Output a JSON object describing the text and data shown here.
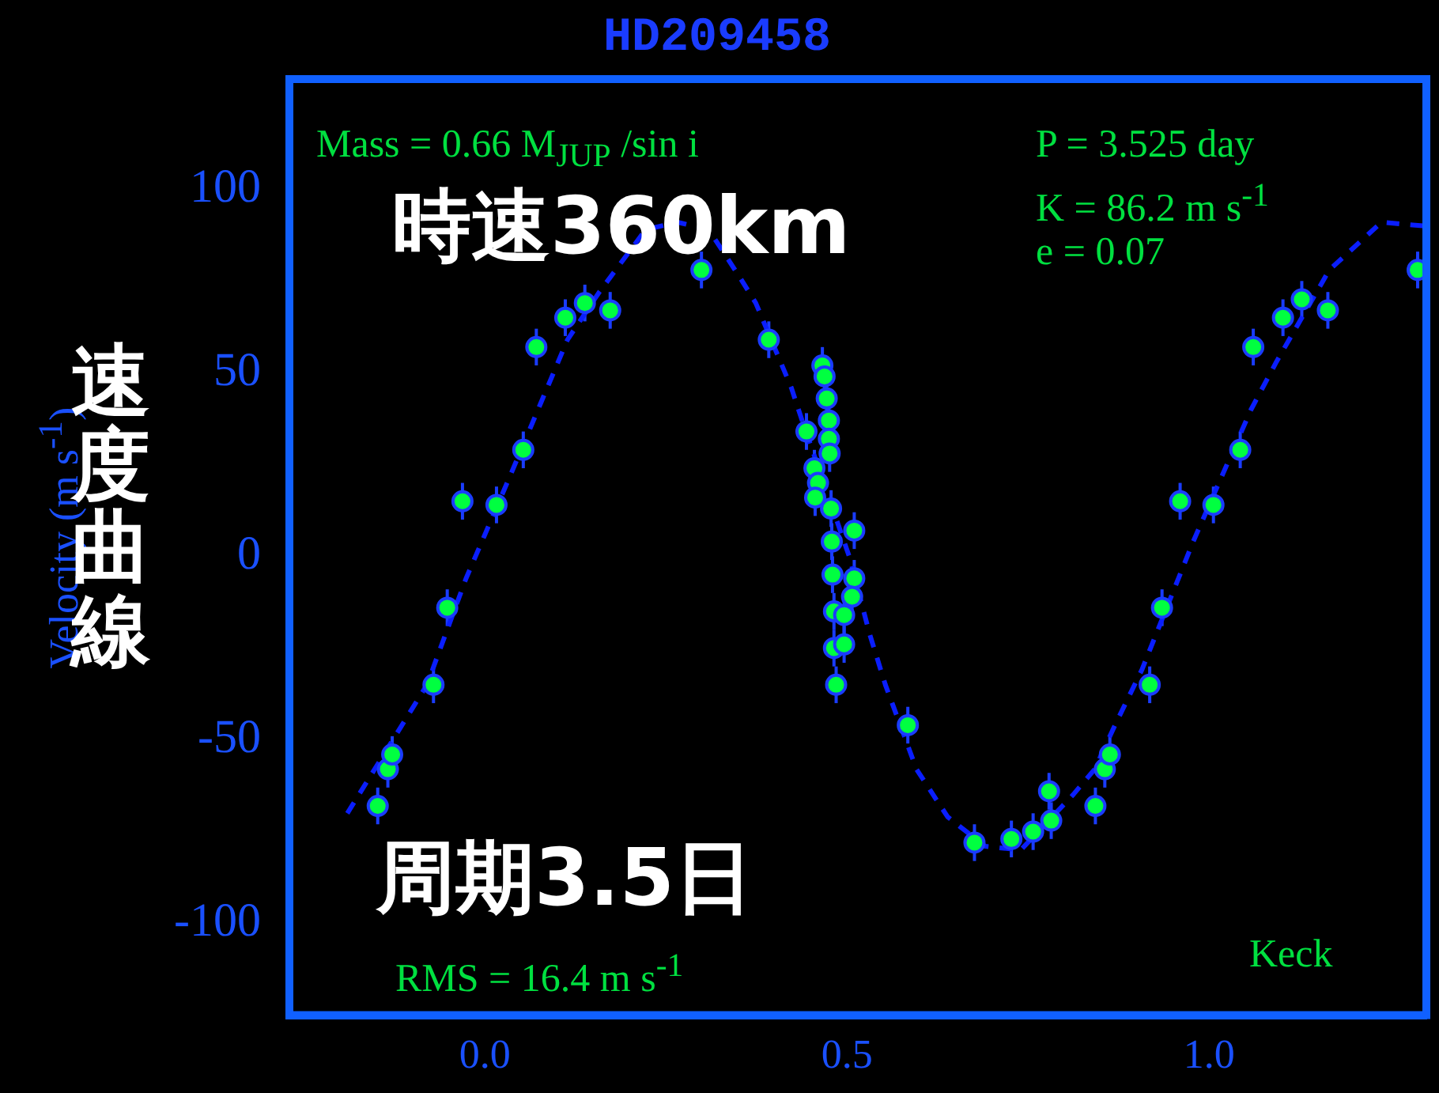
{
  "chart_data": {
    "type": "scatter",
    "title": "HD209458",
    "ylabel": "Velocity (m s$^{-1}$)",
    "xlim": [
      -0.27,
      1.3
    ],
    "xticks": [
      {
        "value": 0,
        "label": "0.0"
      },
      {
        "value": 0.5,
        "label": "0.5"
      },
      {
        "value": 1,
        "label": "1.0"
      }
    ],
    "ylim": [
      -125,
      130
    ],
    "yticks": [
      -100,
      -50,
      0,
      50,
      100
    ],
    "grid": false,
    "legend": false,
    "annotations": [
      "Mass = 0.66 M$_{JUP}$ /sin i",
      "P = 3.525 day",
      "K = 86.2 m s$^{-1}$",
      "e = 0.07",
      "RMS = 16.4 m s$^{-1}$",
      "Keck",
      "時速360km",
      "周期3.5日",
      "速度曲線"
    ],
    "series": [
      {
        "type": "scatter",
        "color": "#00ff40",
        "marker": "circle",
        "x": [
          -0.148,
          -0.134,
          -0.128,
          -0.071,
          -0.052,
          -0.031,
          0.016,
          0.053,
          0.071,
          0.111,
          0.138,
          0.173,
          0.299,
          0.392,
          0.444,
          0.466,
          0.469,
          0.472,
          0.475,
          0.475,
          0.476,
          0.455,
          0.46,
          0.456,
          0.478,
          0.51,
          0.479,
          0.48,
          0.51,
          0.507,
          0.482,
          0.496,
          0.482,
          0.496,
          0.485,
          0.584,
          0.676,
          0.727,
          0.757,
          0.782,
          0.779,
          0.843,
          0.856,
          0.863,
          0.918,
          0.935,
          0.96,
          1.006,
          1.043,
          1.061,
          1.102,
          1.128,
          1.164,
          1.288
        ],
        "values": [
          -68,
          -58,
          -54,
          -35,
          -14,
          15,
          14,
          29,
          57,
          65,
          69,
          67,
          78,
          59,
          34,
          52,
          49,
          43,
          37,
          32,
          28,
          24,
          20,
          16,
          13,
          7,
          4,
          -5,
          -6,
          -11,
          -15,
          -16,
          -25,
          -24,
          -35,
          -46,
          -78,
          -77,
          -75,
          -72,
          -64,
          -68,
          -58,
          -54,
          -35,
          -14,
          15,
          14,
          29,
          57,
          65,
          70,
          67,
          78
        ],
        "errors": [
          5,
          5,
          5,
          5,
          5,
          5,
          5,
          5,
          5,
          5,
          5,
          5,
          5,
          5,
          5,
          5,
          5,
          5,
          5,
          5,
          5,
          5,
          5,
          5,
          5,
          5,
          5,
          5,
          5,
          5,
          5,
          5,
          5,
          5,
          5,
          5,
          5,
          5,
          5,
          5,
          5,
          5,
          5,
          5,
          5,
          5,
          5,
          5,
          5,
          5,
          5,
          5,
          5,
          5
        ]
      },
      {
        "type": "line",
        "color": "#0a1eff",
        "line_style": "dashed",
        "marker": "none",
        "x": [
          -0.19,
          -0.08,
          -0.026,
          0.035,
          0.114,
          0.158,
          0.222,
          0.266,
          0.309,
          0.352,
          0.374,
          0.423,
          0.438,
          0.503,
          0.531,
          0.553,
          0.596,
          0.639,
          0.691,
          0.74,
          0.812,
          0.842,
          0.87,
          0.907,
          0.978,
          1.058,
          1.093,
          1.166,
          1.238,
          1.296
        ],
        "values": [
          -70,
          -35,
          -6,
          22,
          59,
          72,
          89,
          91,
          89,
          76,
          69,
          46,
          37,
          0,
          -21,
          -35,
          -58,
          -71,
          -79,
          -80,
          -65,
          -58,
          -46,
          -31,
          4,
          40,
          53,
          78,
          91,
          90
        ]
      }
    ]
  }
}
